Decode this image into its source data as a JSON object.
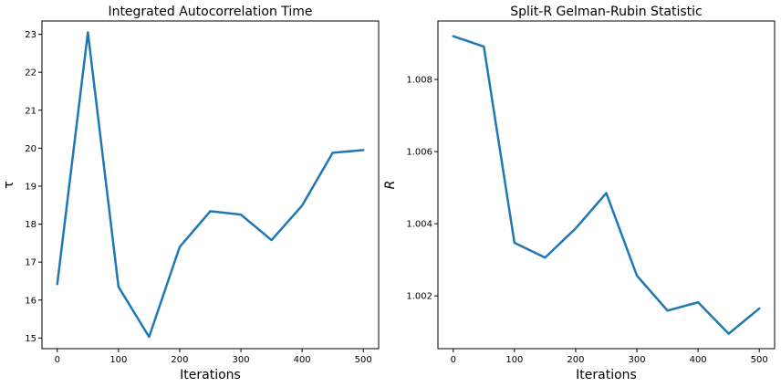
{
  "chart_data": [
    {
      "type": "line",
      "title": "Integrated Autocorrelation Time",
      "xlabel": "Iterations",
      "ylabel": "τ",
      "x": [
        0,
        50,
        100,
        150,
        200,
        250,
        300,
        350,
        400,
        450,
        500
      ],
      "series": [
        {
          "values": [
            16.42,
            23.05,
            16.35,
            15.03,
            17.4,
            18.34,
            18.25,
            17.58,
            18.49,
            19.88,
            19.95
          ]
        }
      ],
      "xlim": [
        -25,
        525
      ],
      "ylim": [
        14.72,
        23.35
      ],
      "xticks": [
        0,
        100,
        200,
        300,
        400,
        500
      ],
      "yticks": [
        15,
        16,
        17,
        18,
        19,
        20,
        21,
        22,
        23
      ],
      "xtick_labels": [
        "0",
        "100",
        "200",
        "300",
        "400",
        "500"
      ],
      "ytick_labels": [
        "15",
        "16",
        "17",
        "18",
        "19",
        "20",
        "21",
        "22",
        "23"
      ],
      "grid": false,
      "color": "#1f77b4"
    },
    {
      "type": "line",
      "title": "Split-R Gelman-Rubin Statistic",
      "xlabel": "Iterations",
      "ylabel": "R",
      "x": [
        0,
        50,
        100,
        150,
        200,
        250,
        300,
        350,
        400,
        450,
        500
      ],
      "series": [
        {
          "values": [
            1.0092,
            1.00891,
            1.00347,
            1.00306,
            1.00387,
            1.00485,
            1.00256,
            1.00159,
            1.00182,
            1.00095,
            1.00165
          ]
        }
      ],
      "xlim": [
        -25,
        525
      ],
      "ylim": [
        1.000535,
        1.009621
      ],
      "xticks": [
        0,
        100,
        200,
        300,
        400,
        500
      ],
      "yticks": [
        1.002,
        1.004,
        1.006,
        1.008
      ],
      "xtick_labels": [
        "0",
        "100",
        "200",
        "300",
        "400",
        "500"
      ],
      "ytick_labels": [
        "1.002",
        "1.004",
        "1.006",
        "1.008"
      ],
      "grid": false,
      "color": "#1f77b4"
    }
  ]
}
